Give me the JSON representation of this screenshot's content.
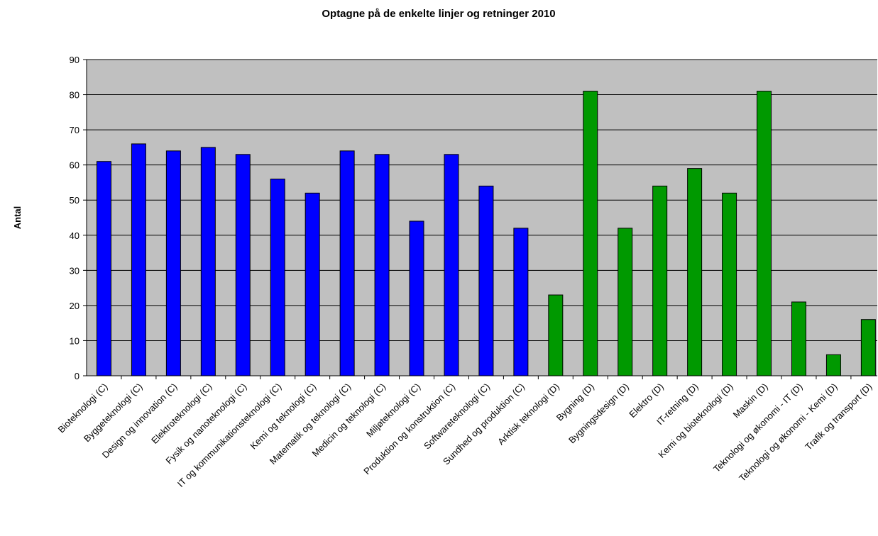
{
  "chart_data": {
    "type": "bar",
    "title": "Optagne på de enkelte linjer og retninger 2010",
    "ylabel": "Antal",
    "categories": [
      "Bioteknologi (C)",
      "Byggeteknologi (C)",
      "Design og innovation (C)",
      "Elektroteknologi (C)",
      "Fysik og nanoteknologi (C)",
      "IT og kommunikationsteknologi (C)",
      "Kemi og teknologi (C)",
      "Matematik og teknologi (C)",
      "Medicin og teknologi (C)",
      "Miljøteknologi (C)",
      "Produktion og konstruktion (C)",
      "Softwareteknologi (C)",
      "Sundhed og produktion (C)",
      "Arktisk teknologi (D)",
      "Bygning (D)",
      "Bygningsdesign (D)",
      "Elektro (D)",
      "IT-retning (D)",
      "Kemi og bioteknologi (D)",
      "Maskin (D)",
      "Teknologi og økonomi - IT (D)",
      "Teknologi og økonomi - Kemi (D)",
      "Trafik og transport (D)"
    ],
    "values": [
      61,
      66,
      64,
      65,
      63,
      56,
      52,
      64,
      63,
      44,
      63,
      54,
      42,
      23,
      81,
      42,
      54,
      59,
      52,
      81,
      21,
      6,
      16
    ],
    "colors": [
      "#0000ff",
      "#0000ff",
      "#0000ff",
      "#0000ff",
      "#0000ff",
      "#0000ff",
      "#0000ff",
      "#0000ff",
      "#0000ff",
      "#0000ff",
      "#0000ff",
      "#0000ff",
      "#0000ff",
      "#009900",
      "#009900",
      "#009900",
      "#009900",
      "#009900",
      "#009900",
      "#009900",
      "#009900",
      "#009900",
      "#009900"
    ],
    "ylim": [
      0,
      90
    ],
    "yticks": [
      0,
      10,
      20,
      30,
      40,
      50,
      60,
      70,
      80,
      90
    ],
    "grid": true
  }
}
